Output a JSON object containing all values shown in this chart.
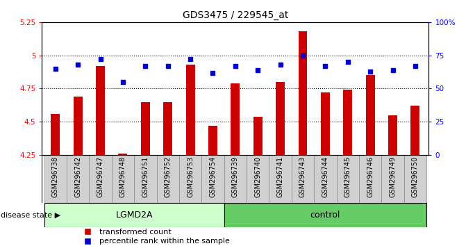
{
  "title": "GDS3475 / 229545_at",
  "samples": [
    "GSM296738",
    "GSM296742",
    "GSM296747",
    "GSM296748",
    "GSM296751",
    "GSM296752",
    "GSM296753",
    "GSM296754",
    "GSM296739",
    "GSM296740",
    "GSM296741",
    "GSM296743",
    "GSM296744",
    "GSM296745",
    "GSM296746",
    "GSM296749",
    "GSM296750"
  ],
  "groups": [
    "LGMD2A",
    "LGMD2A",
    "LGMD2A",
    "LGMD2A",
    "LGMD2A",
    "LGMD2A",
    "LGMD2A",
    "LGMD2A",
    "control",
    "control",
    "control",
    "control",
    "control",
    "control",
    "control",
    "control",
    "control"
  ],
  "red_values": [
    4.56,
    4.69,
    4.92,
    4.26,
    4.65,
    4.65,
    4.93,
    4.47,
    4.79,
    4.54,
    4.8,
    5.18,
    4.72,
    4.74,
    4.85,
    4.55,
    4.62
  ],
  "blue_values": [
    65,
    68,
    72,
    55,
    67,
    67,
    72,
    62,
    67,
    64,
    68,
    75,
    67,
    70,
    63,
    64,
    67
  ],
  "ylim_left": [
    4.25,
    5.25
  ],
  "ylim_right": [
    0,
    100
  ],
  "yticks_left": [
    4.25,
    4.5,
    4.75,
    5.0,
    5.25
  ],
  "yticks_right": [
    0,
    25,
    50,
    75,
    100
  ],
  "ytick_labels_left": [
    "4.25",
    "4.5",
    "4.75",
    "5",
    "5.25"
  ],
  "ytick_labels_right": [
    "0",
    "25",
    "50",
    "75",
    "100%"
  ],
  "hlines": [
    5.0,
    4.75,
    4.5
  ],
  "bar_color": "#cc0000",
  "dot_color": "#0000cc",
  "lgmd2a_color": "#ccffcc",
  "control_color": "#66cc66",
  "disease_state_label": "disease state",
  "legend_red": "transformed count",
  "legend_blue": "percentile rank within the sample",
  "n_lgmd2a": 8,
  "n_control": 9,
  "bar_width": 0.4,
  "label_box_color": "#d0d0d0",
  "title_fontsize": 10,
  "tick_fontsize": 7.5,
  "label_fontsize": 7,
  "group_fontsize": 9,
  "legend_fontsize": 8,
  "dot_size": 5
}
